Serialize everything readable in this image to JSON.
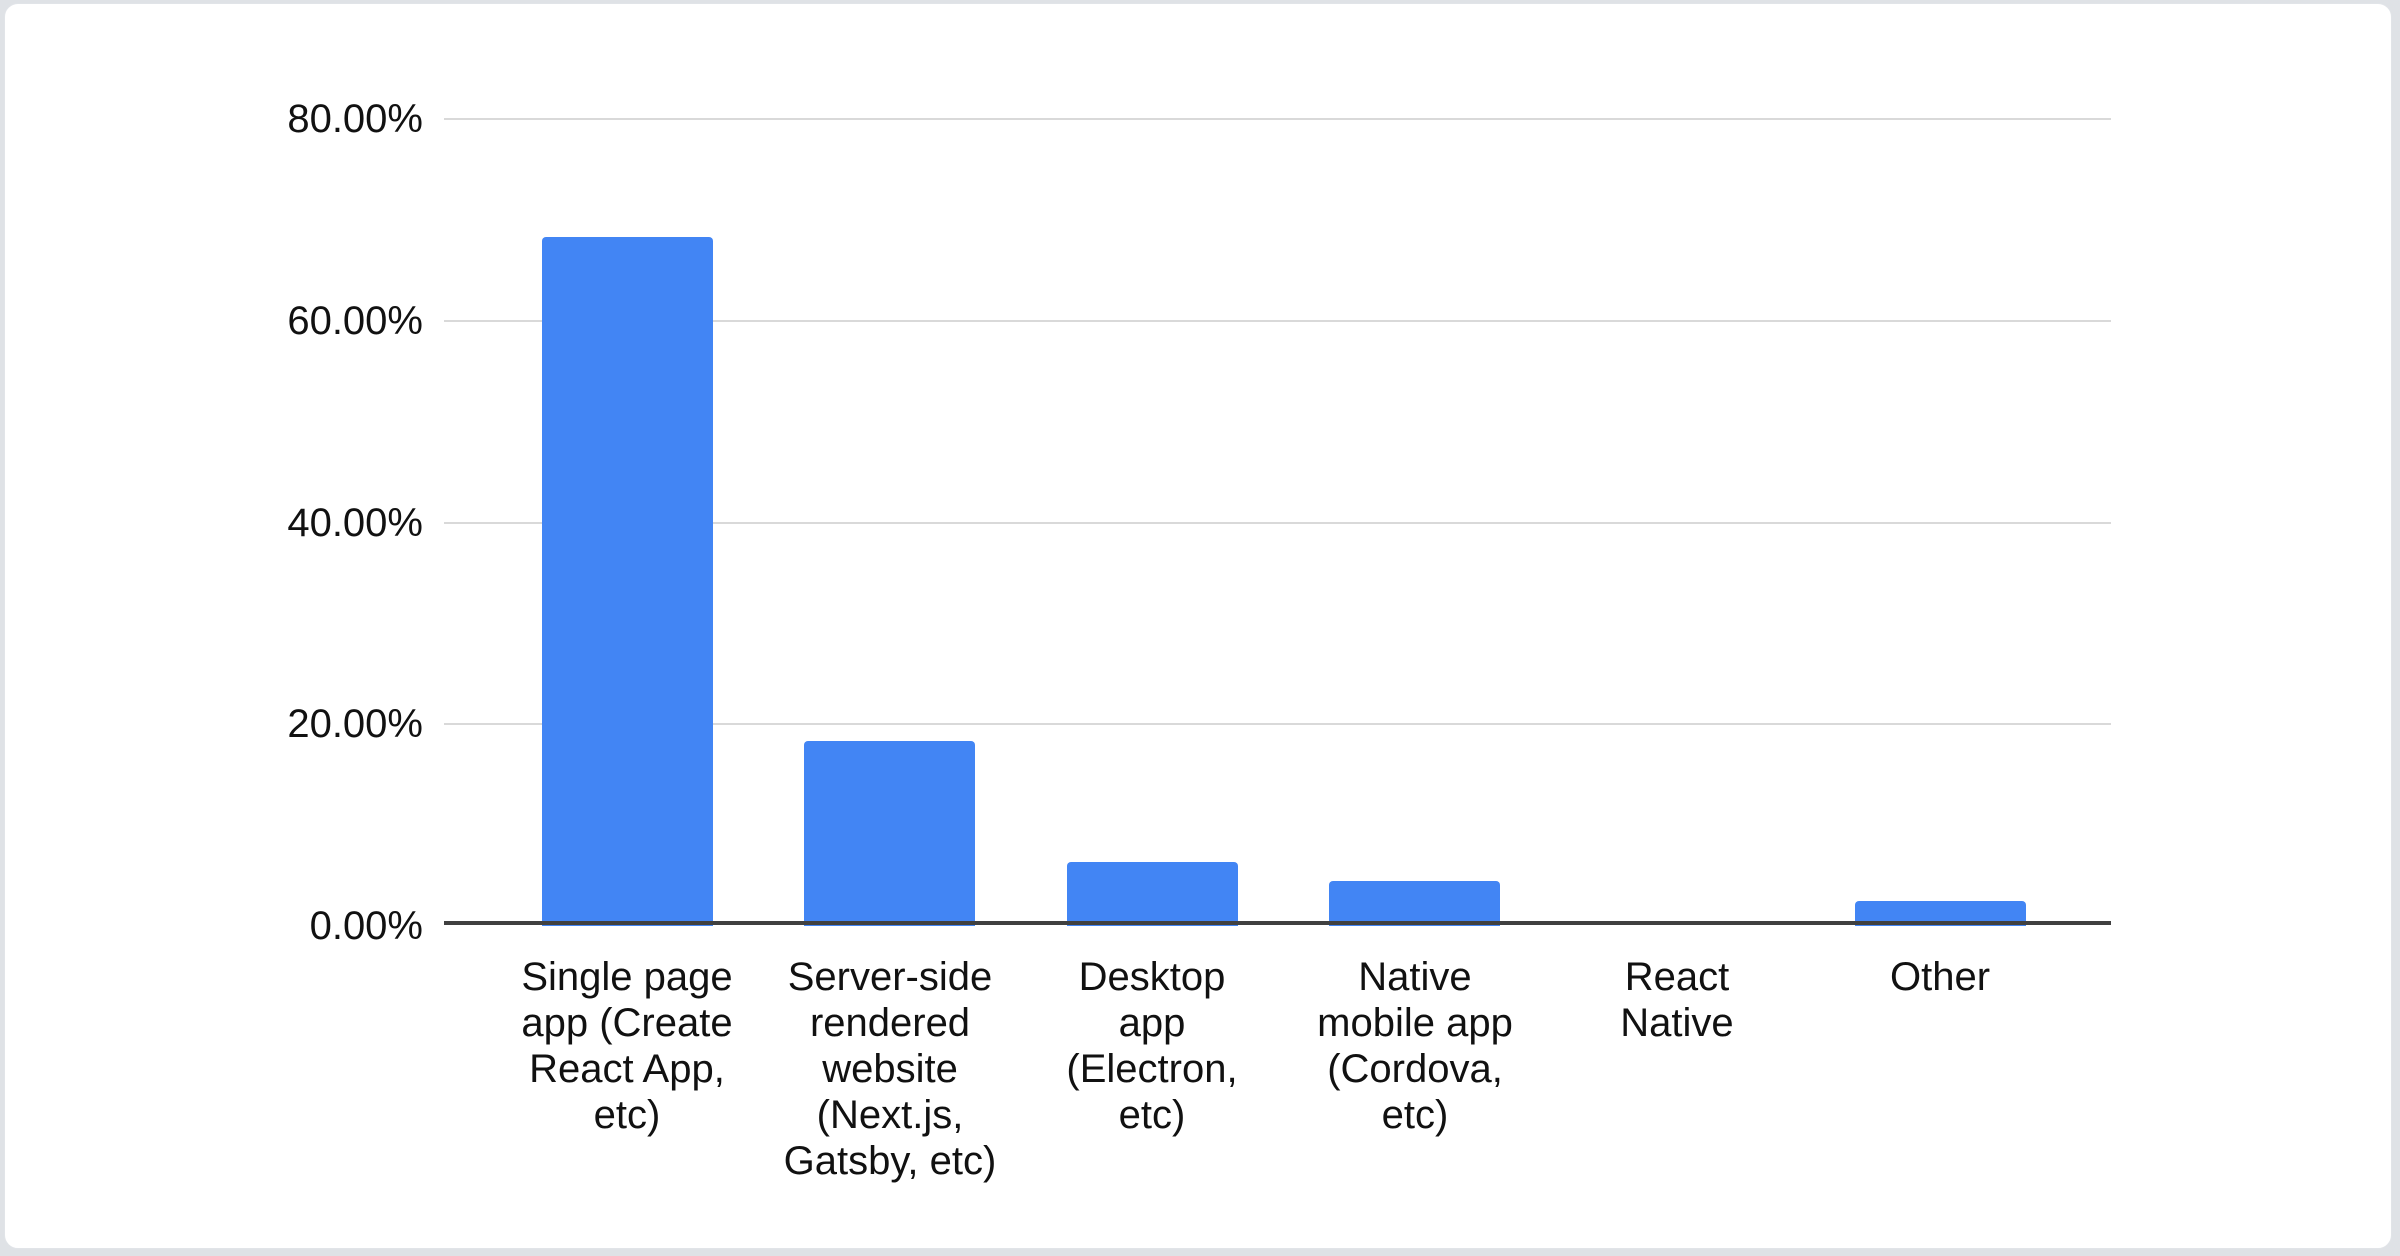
{
  "page": {
    "background_color": "#dfe2e6"
  },
  "card": {
    "background_color": "#ffffff",
    "border_color": "#e1e4e8"
  },
  "chart_data": {
    "type": "bar",
    "title": "",
    "categories": [
      "Single page app (Create React App, etc)",
      "Server-side rendered website (Next.js, Gatsby, etc)",
      "Desktop app (Electron, etc)",
      "Native mobile app (Cordova, etc)",
      "React Native",
      "Other"
    ],
    "categories_display": [
      "Single page\napp (Create\nReact App,\netc)",
      "Server-side\nrendered\nwebsite\n(Next.js,\nGatsby, etc)",
      "Desktop\napp\n(Electron,\netc)",
      "Native\nmobile app\n(Cordova,\netc)",
      "React\nNative",
      "Other"
    ],
    "values": [
      68.3,
      18.3,
      6.3,
      4.5,
      0,
      2.5
    ],
    "value_unit": "%",
    "series_name": "",
    "bar_color": "#4285f4",
    "y_axis": {
      "min": 0,
      "max": 80,
      "ticks": [
        0,
        20,
        40,
        60,
        80
      ],
      "tick_labels": [
        "0.00%",
        "20.00%",
        "40.00%",
        "60.00%",
        "80.00%"
      ]
    },
    "x_axis_label": "",
    "y_axis_label": "",
    "grid": true,
    "gridline_color": "#d9d9d9",
    "axis_line_color": "#404040",
    "text_color": "#111111",
    "legend": "none"
  }
}
